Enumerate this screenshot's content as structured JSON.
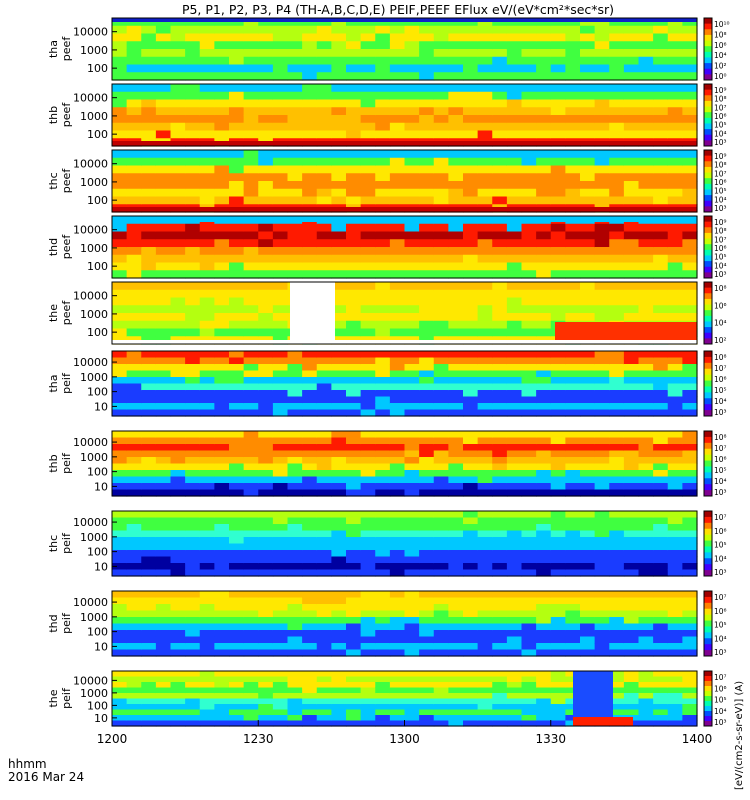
{
  "title": "P5, P1, P2, P3, P4 (TH-A,B,C,D,E) PEIF,PEEF EFlux eV/(eV*cm²*sec*sr)",
  "colorbar_unit_label": "[eV/(cm2-s-sr-eV)] (A)",
  "xaxis": {
    "label_line1": "hhmm",
    "label_line2": "2016 Mar 24"
  },
  "colormap": [
    "#ffffff",
    "#7f0090",
    "#4000ff",
    "#0050ff",
    "#00c8ff",
    "#00ffb0",
    "#40ff40",
    "#c8ff00",
    "#ffe000",
    "#ff8000",
    "#ff1a00",
    "#a00000"
  ],
  "chart_data": {
    "type": "heatmap",
    "x_ticks": [
      "1200",
      "1230",
      "1300",
      "1330",
      "1400"
    ],
    "x_range": [
      "12:00",
      "14:00"
    ],
    "y_scale": "log",
    "panels": [
      {
        "id": "tha_peef",
        "ylabel_1": "tha",
        "ylabel_2": "peef",
        "yticks": [
          "10000",
          "1000",
          "100"
        ],
        "cbar_ticks": [
          "10¹⁰",
          "10⁸",
          "10⁶",
          "10⁴",
          "10²",
          "10⁰"
        ],
        "dominant": "yellow-green",
        "top_band": "dark-blue"
      },
      {
        "id": "thb_peef",
        "ylabel_1": "thb",
        "ylabel_2": "peef",
        "yticks": [
          "10000",
          "1000",
          "100"
        ],
        "cbar_ticks": [
          "10⁹",
          "10⁸",
          "10⁷",
          "10⁶",
          "10⁵",
          "10⁴",
          "10³"
        ],
        "dominant": "orange",
        "bottom_band": "red"
      },
      {
        "id": "thc_peef",
        "ylabel_1": "thc",
        "ylabel_2": "peef",
        "yticks": [
          "10000",
          "1000",
          "100"
        ],
        "cbar_ticks": [
          "10⁹",
          "10⁸",
          "10⁷",
          "10⁶",
          "10⁵",
          "10⁴",
          "10³"
        ],
        "dominant": "orange",
        "bottom_band": "red"
      },
      {
        "id": "thd_peef",
        "ylabel_1": "thd",
        "ylabel_2": "peef",
        "yticks": [
          "10000",
          "1000",
          "100"
        ],
        "cbar_ticks": [
          "10⁹",
          "10⁸",
          "10⁷",
          "10⁶",
          "10⁵",
          "10⁴",
          "10³"
        ],
        "dominant": "red",
        "gap": "white"
      },
      {
        "id": "the_peef",
        "ylabel_1": "the",
        "ylabel_2": "peef",
        "yticks": [
          "10000",
          "1000",
          "100"
        ],
        "cbar_ticks": [
          "10⁸",
          "10⁶",
          "10⁴",
          "10²"
        ],
        "dominant": "orange-yellow",
        "gap": "white"
      },
      {
        "id": "tha_peif",
        "ylabel_1": "tha",
        "ylabel_2": "peif",
        "yticks": [
          "10000",
          "1000",
          "100",
          "10"
        ],
        "cbar_ticks": [
          "10⁸",
          "10⁷",
          "10⁶",
          "10⁵",
          "10⁴",
          "10³"
        ],
        "dominant": "cyan-green"
      },
      {
        "id": "thb_peif",
        "ylabel_1": "thb",
        "ylabel_2": "peif",
        "yticks": [
          "10000",
          "1000",
          "100",
          "10"
        ],
        "cbar_ticks": [
          "10⁸",
          "10⁷",
          "10⁶",
          "10⁵",
          "10⁴",
          "10³"
        ],
        "dominant": "orange"
      },
      {
        "id": "thc_peif",
        "ylabel_1": "thc",
        "ylabel_2": "peif",
        "yticks": [
          "10000",
          "1000",
          "100",
          "10"
        ],
        "cbar_ticks": [
          "10⁷",
          "10⁶",
          "10⁵",
          "10⁴",
          "10³"
        ],
        "dominant": "green"
      },
      {
        "id": "thd_peif",
        "ylabel_1": "thd",
        "ylabel_2": "peif",
        "yticks": [
          "10000",
          "1000",
          "100",
          "10"
        ],
        "cbar_ticks": [
          "10⁷",
          "10⁶",
          "10⁵",
          "10⁴",
          "10³"
        ],
        "dominant": "yellow"
      },
      {
        "id": "the_peif",
        "ylabel_1": "the",
        "ylabel_2": "peif",
        "yticks": [
          "10000",
          "1000",
          "100",
          "10"
        ],
        "cbar_ticks": [
          "10⁷",
          "10⁶",
          "10⁵",
          "10⁴",
          "10³"
        ],
        "dominant": "yellow-cyan"
      }
    ]
  }
}
